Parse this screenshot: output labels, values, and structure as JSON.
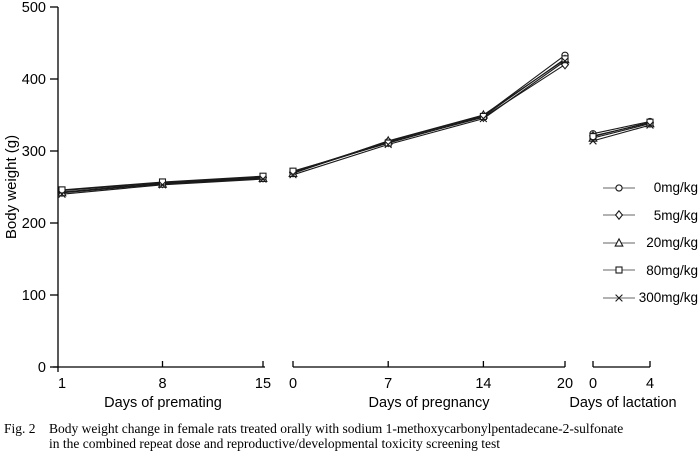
{
  "figure": {
    "caption_label": "Fig. 2",
    "caption_line1": "Body weight change in female rats treated orally with sodium 1-methoxycarbonylpentadecane-2-sulfonate",
    "caption_line2": "in the combined repeat dose and reproductive/developmental toxicity screening test"
  },
  "chart_data": {
    "type": "line",
    "title": "",
    "ylabel": "Body weight (g)",
    "ylim": [
      0,
      500
    ],
    "yticks": [
      0,
      100,
      200,
      300,
      400,
      500
    ],
    "grid": false,
    "legend_position": "right",
    "line_color": "#1a1a1a",
    "marker_fill": "#ffffff",
    "legend_line_color": "#999999",
    "panels": [
      {
        "xlabel": "Days of premating",
        "domain": [
          1,
          15
        ],
        "xticks": [
          1,
          8,
          15
        ]
      },
      {
        "xlabel": "Days of pregnancy",
        "domain": [
          0,
          20
        ],
        "xticks": [
          0,
          7,
          14,
          20
        ]
      },
      {
        "xlabel": "Days of lactation",
        "domain": [
          0,
          4
        ],
        "xticks": [
          0,
          4
        ]
      }
    ],
    "series": [
      {
        "name": "0mg/kg",
        "marker": "circle",
        "values": [
          [
            245,
            256,
            264
          ],
          [
            271,
            313,
            349,
            433
          ],
          [
            324,
            341
          ]
        ]
      },
      {
        "name": "5mg/kg",
        "marker": "diamond",
        "values": [
          [
            243,
            255,
            263
          ],
          [
            270,
            312,
            347,
            420
          ],
          [
            321,
            339
          ]
        ]
      },
      {
        "name": "20mg/kg",
        "marker": "triangle",
        "values": [
          [
            242,
            254,
            262
          ],
          [
            269,
            314,
            350,
            427
          ],
          [
            318,
            338
          ]
        ]
      },
      {
        "name": "80mg/kg",
        "marker": "square",
        "values": [
          [
            246,
            257,
            265
          ],
          [
            272,
            311,
            348,
            428
          ],
          [
            320,
            340
          ]
        ]
      },
      {
        "name": "300mg/kg",
        "marker": "x",
        "values": [
          [
            240,
            253,
            261
          ],
          [
            267,
            309,
            345,
            425
          ],
          [
            314,
            336
          ]
        ]
      }
    ]
  }
}
